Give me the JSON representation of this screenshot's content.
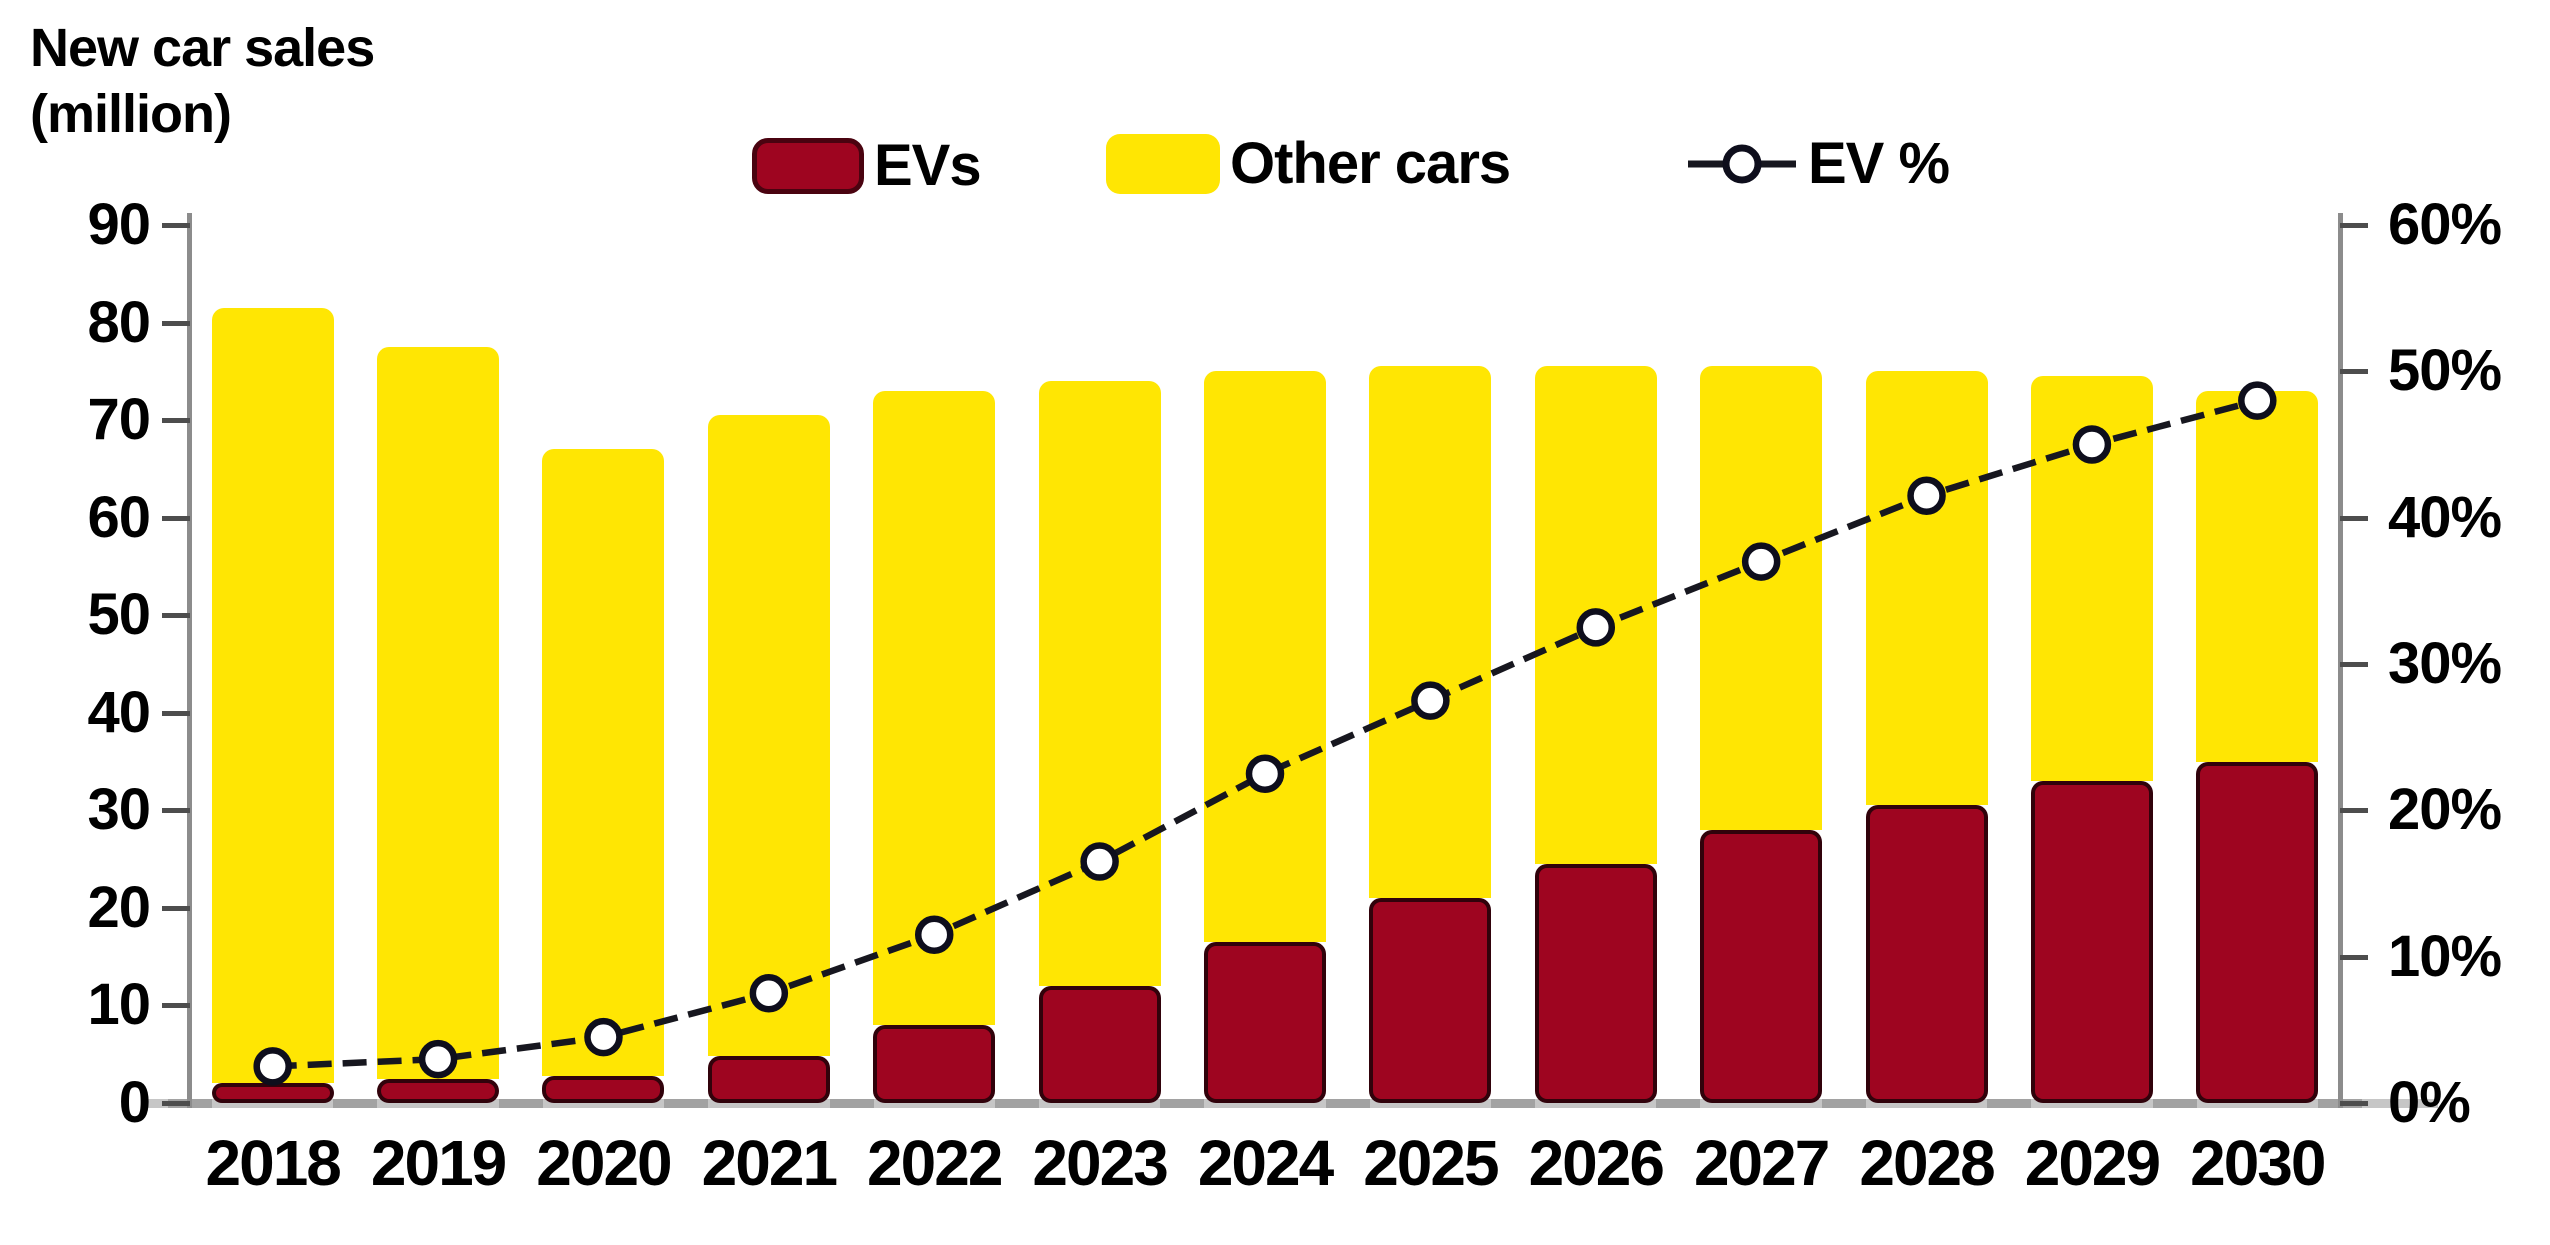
{
  "title": {
    "line1": "New car sales",
    "line2": "(million)"
  },
  "legend": {
    "evs_label": "EVs",
    "other_cars_label": "Other cars",
    "ev_pct_label": "EV %"
  },
  "colors": {
    "evs_bar": "#9E0520",
    "evs_bar_outline": "#2B000A",
    "other_bar": "#FFE603",
    "line": "#17171F",
    "marker_fill": "#FFFFFF",
    "marker_stroke": "#0E0E1C",
    "axis": "#8c8c8c",
    "tick": "#4d4d4d",
    "baseline": "#c6c6c6",
    "text": "#000000"
  },
  "chart_data": {
    "type": "bar",
    "subtype": "stacked-bars-with-secondary-percent-line",
    "title": "New car sales (million)",
    "categories": [
      "2018",
      "2019",
      "2020",
      "2021",
      "2022",
      "2023",
      "2024",
      "2025",
      "2026",
      "2027",
      "2028",
      "2029",
      "2030"
    ],
    "series": [
      {
        "name": "EVs",
        "type": "bar",
        "stack": true,
        "axis": "left",
        "color": "#9E0520",
        "values": [
          2,
          2.5,
          2.8,
          4.8,
          8,
          12,
          16.5,
          21,
          24.5,
          28,
          30.5,
          33,
          35
        ]
      },
      {
        "name": "Other cars",
        "type": "bar",
        "stack": true,
        "axis": "left",
        "color": "#FFE603",
        "values": [
          79.5,
          75,
          64.2,
          65.7,
          65,
          62,
          58.5,
          54.5,
          51,
          47.5,
          44.5,
          41.5,
          38
        ]
      },
      {
        "name": "EV %",
        "type": "line",
        "axis": "right",
        "color": "#17171F",
        "marker": "open-circle",
        "values": [
          2.5,
          3,
          4.5,
          7.5,
          11.5,
          16.5,
          22.5,
          27.5,
          32.5,
          37,
          41.5,
          45,
          48
        ]
      }
    ],
    "totals": [
      81.5,
      77.5,
      67,
      70.5,
      73,
      74,
      75,
      75.5,
      75.5,
      75.5,
      75,
      74.5,
      73
    ],
    "left_axis": {
      "label": "New car sales (million)",
      "min": 0,
      "max": 90,
      "tick_step": 10,
      "ticks": [
        0,
        10,
        20,
        30,
        40,
        50,
        60,
        70,
        80,
        90
      ],
      "tick_labels": [
        "0",
        "10",
        "20",
        "30",
        "40",
        "50",
        "60",
        "70",
        "80",
        "90"
      ]
    },
    "right_axis": {
      "label": "EV %",
      "min": 0,
      "max": 60,
      "tick_step": 10,
      "suffix": "%",
      "ticks": [
        0,
        10,
        20,
        30,
        40,
        50,
        60
      ],
      "tick_labels": [
        "0%",
        "10%",
        "20%",
        "30%",
        "40%",
        "50%",
        "60%"
      ]
    },
    "grid": false,
    "legend_position": "top-center",
    "background": "#ffffff"
  }
}
